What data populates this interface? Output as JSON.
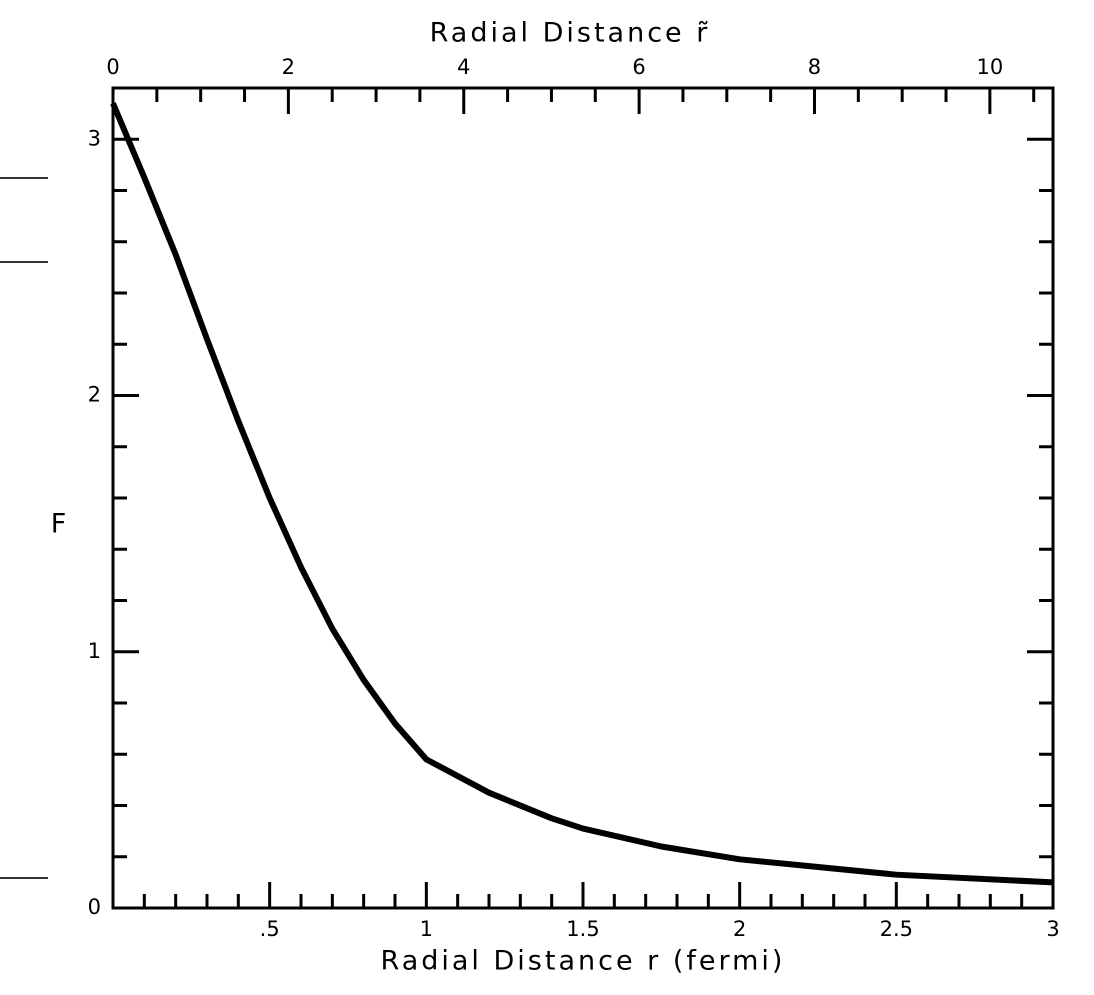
{
  "chart_data": {
    "type": "line",
    "xlabel": "Radial  Distance  r  (fermi)",
    "x2label": "Radial  Distance  r̃",
    "ylabel": "F",
    "x": [
      0,
      0.1,
      0.2,
      0.3,
      0.4,
      0.5,
      0.6,
      0.7,
      0.8,
      0.9,
      1.0,
      1.2,
      1.4,
      1.5,
      1.75,
      2.0,
      2.5,
      3.0
    ],
    "series": [
      {
        "name": "F",
        "color": "#000000",
        "values": [
          3.14,
          2.85,
          2.55,
          2.22,
          1.9,
          1.6,
          1.33,
          1.09,
          0.89,
          0.72,
          0.58,
          0.45,
          0.35,
          0.31,
          0.24,
          0.19,
          0.13,
          0.1
        ]
      }
    ],
    "xlim": [
      0,
      3
    ],
    "xticks": [
      {
        "value": 0.5,
        "label": ".5"
      },
      1,
      1.5,
      2,
      2.5,
      3
    ],
    "xminorticks": [
      0.1,
      0.2,
      0.3,
      0.4,
      0.6,
      0.7,
      0.8,
      0.9,
      1.1,
      1.2,
      1.3,
      1.4,
      1.6,
      1.7,
      1.8,
      1.9,
      2.1,
      2.2,
      2.3,
      2.4,
      2.6,
      2.7,
      2.8,
      2.9
    ],
    "x2lim": [
      0,
      10.72
    ],
    "x2ticks": [
      0,
      2,
      4,
      6,
      8,
      10
    ],
    "x2minorticks": [
      0.5,
      1,
      1.5,
      2.5,
      3,
      3.5,
      4.5,
      5,
      5.5,
      6.5,
      7,
      7.5,
      8.5,
      9,
      9.5,
      10.5
    ],
    "ylim": [
      0,
      3.2
    ],
    "yticks": [
      0,
      1,
      2,
      3
    ],
    "yminorticks": [
      0.2,
      0.4,
      0.6,
      0.8,
      1.2,
      1.4,
      1.6,
      1.8,
      2.2,
      2.4,
      2.6,
      2.8
    ]
  }
}
